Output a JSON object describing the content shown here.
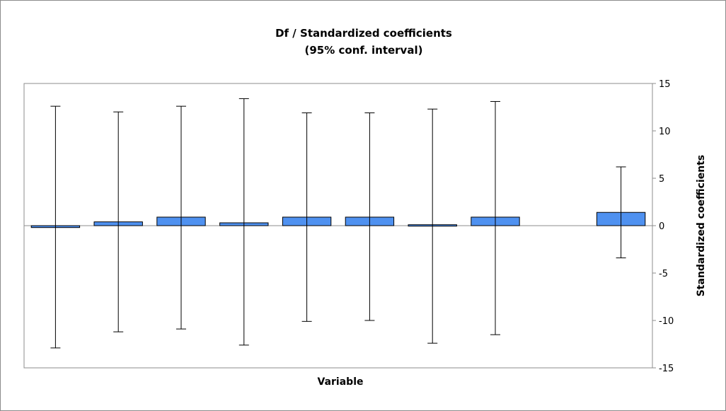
{
  "chart_data": {
    "type": "bar",
    "title": "Df / Standardized coefficients",
    "subtitle": "(95% conf. interval)",
    "xlabel": "Variable",
    "ylabel": "Standardized coefficients",
    "ylim": [
      -15,
      15
    ],
    "yticks": [
      15,
      10,
      5,
      0,
      -5,
      -10,
      -15
    ],
    "y_axis_side": "right",
    "grid": false,
    "legend": "none",
    "bar_color": "#4f91f0",
    "categories": [
      "",
      "",
      "",
      "",
      "",
      "",
      "",
      "",
      "",
      ""
    ],
    "values": [
      -0.2,
      0.4,
      0.9,
      0.3,
      0.9,
      0.9,
      0.1,
      0.9,
      null,
      1.4
    ],
    "error_low": [
      -12.9,
      -11.2,
      -10.9,
      -12.6,
      -10.1,
      -10.0,
      -12.4,
      -11.5,
      null,
      -3.4
    ],
    "error_high": [
      12.6,
      12.0,
      12.6,
      13.4,
      11.9,
      11.9,
      12.3,
      13.1,
      null,
      6.2
    ]
  }
}
